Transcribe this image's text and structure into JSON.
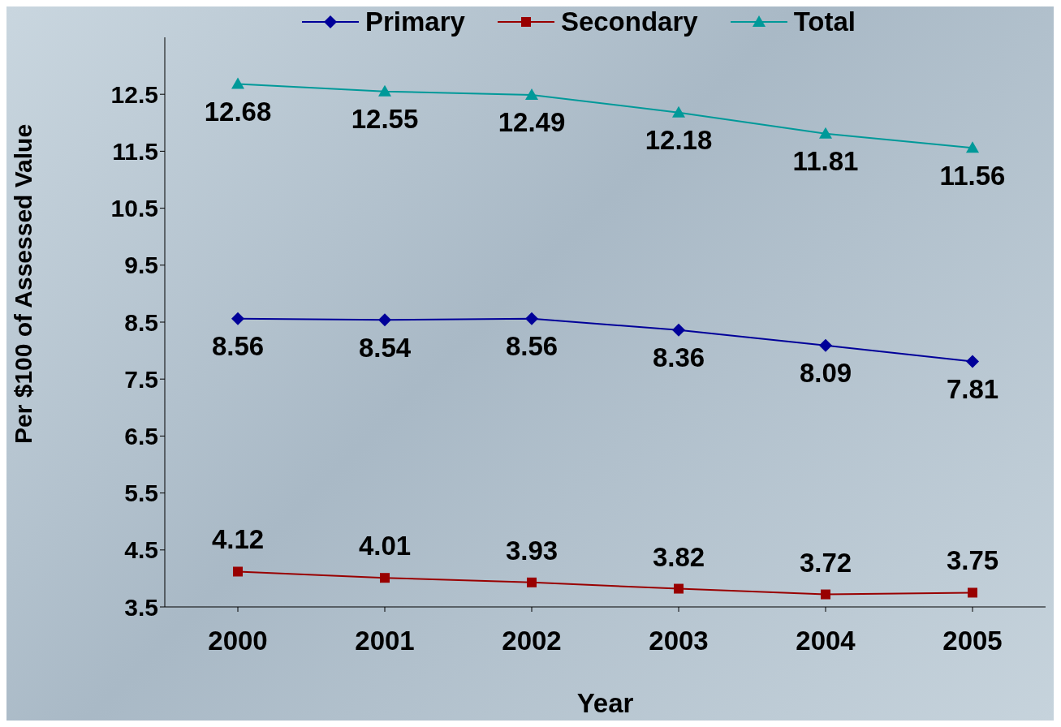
{
  "chart_data": {
    "type": "line",
    "xlabel": "Year",
    "ylabel": "Per $100 of Assessed Value",
    "categories": [
      "2000",
      "2001",
      "2002",
      "2003",
      "2004",
      "2005"
    ],
    "series": [
      {
        "name": "Primary",
        "color": "#000099",
        "marker": "diamond",
        "values": [
          8.56,
          8.54,
          8.56,
          8.36,
          8.09,
          7.81
        ]
      },
      {
        "name": "Secondary",
        "color": "#990000",
        "marker": "square",
        "values": [
          4.12,
          4.01,
          3.93,
          3.82,
          3.72,
          3.75
        ]
      },
      {
        "name": "Total",
        "color": "#009999",
        "marker": "triangle",
        "values": [
          12.68,
          12.55,
          12.49,
          12.18,
          11.81,
          11.56
        ]
      }
    ],
    "ylim": [
      3.5,
      13.5
    ],
    "yticks": [
      3.5,
      4.5,
      5.5,
      6.5,
      7.5,
      8.5,
      9.5,
      10.5,
      11.5,
      12.5
    ],
    "grid": false,
    "legend": "top",
    "data_labels": true,
    "line_style": "solid"
  }
}
